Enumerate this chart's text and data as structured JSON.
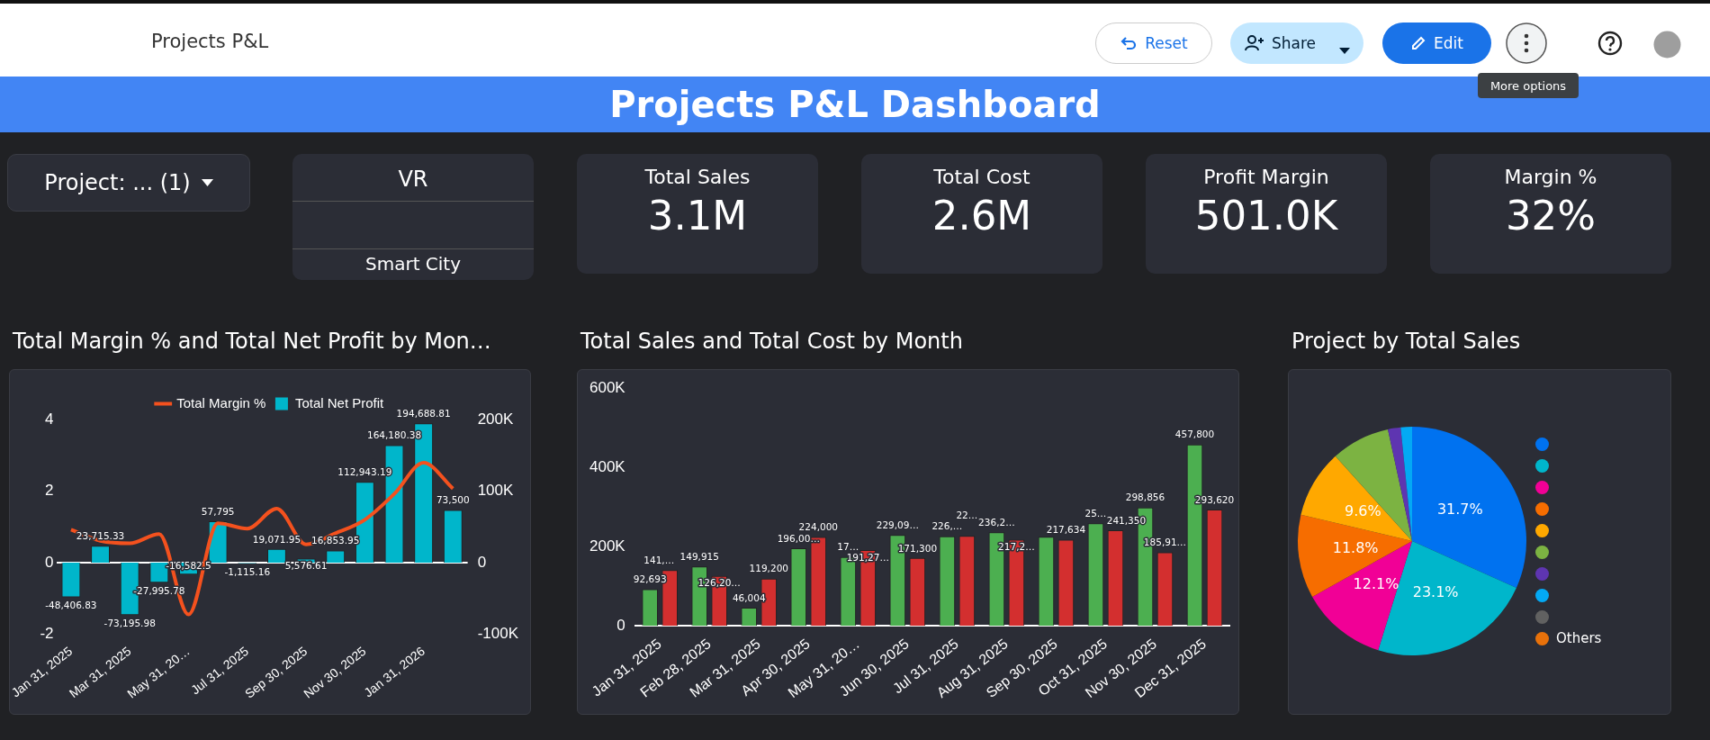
{
  "chart_data": [
    {
      "type": "other",
      "title": "Projects P&L Dashboard",
      "annotations": [
        "Projects P&L",
        "Reset",
        "Share",
        "Edit",
        "More options",
        "Project: ... (1)",
        "VR",
        "Smart City",
        "Total Sales",
        "3.1M",
        "Total Cost",
        "2.6M",
        "Profit Margin",
        "501.0K",
        "Margin %",
        "32%"
      ]
    },
    {
      "type": "bar",
      "title": "Total Margin % and Total Net Profit by Mon…",
      "categories": [
        "Jan 31, 2025",
        null,
        "Mar 31, 2025",
        null,
        "May 31, 20…",
        null,
        "Jul 31, 2025",
        null,
        "Sep 30, 2025",
        null,
        "Nov 30, 2025",
        null,
        "Jan 31, 2026",
        null
      ],
      "series": [
        {
          "name": "Total Margin %",
          "type": "line",
          "color": "#f4511e",
          "values": [
            0.92,
            0.61,
            0.54,
            0.8,
            -1.45,
            1.1,
            0.95,
            1.51,
            0.51,
            0.82,
            1.2,
            1.92,
            2.79,
            2.07
          ]
        },
        {
          "name": "Total Net Profit",
          "type": "bar",
          "axis": "y2",
          "color": "#00b6cb",
          "values": [
            -48406.83,
            23715.33,
            -73195.98,
            -27995.78,
            -16582.5,
            57795,
            -1115.16,
            19071.95,
            5576.61,
            16853.95,
            112943.19,
            164180.38,
            194688.81,
            73500
          ],
          "value_labels": [
            "-48,406.83",
            "23,715.33",
            "-73,195.98",
            "-27,995.78",
            "-16,582.5",
            "57,795",
            "-1,115.16",
            "19,071.95",
            "5,576.61",
            "16,853.95",
            "112,943.19",
            "164,180.38",
            "194,688.81",
            "73,500"
          ]
        }
      ],
      "ylim": [
        -2,
        4
      ],
      "yticks": [
        -2,
        0,
        2,
        4
      ],
      "y2lim": [
        -100000,
        200000
      ],
      "y2ticks": [
        {
          "value": -100000,
          "label": "-100K"
        },
        0,
        {
          "value": 100000,
          "label": "100K"
        },
        {
          "value": 200000,
          "label": "200K"
        }
      ],
      "legend": "top"
    },
    {
      "type": "bar",
      "title": "Total Sales and Total Cost by Month",
      "categories": [
        "Jan 31, 2025",
        "Feb 28, 2025",
        "Mar 31, 2025",
        "Apr 30, 2025",
        "May 31, 20…",
        "Jun 30, 2025",
        "Jul 31, 2025",
        "Aug 31, 2025",
        "Sep 30, 2025",
        "Oct 31, 2025",
        "Nov 30, 2025",
        "Dec 31, 2025"
      ],
      "series": [
        {
          "color": "#4caf50",
          "values": [
            92693,
            149915,
            46004,
            196000,
            174000,
            229090,
            226000,
            236200,
            225000,
            259000,
            298856,
            457800
          ],
          "value_labels": [
            "92,693",
            "149,915",
            "46,004",
            "196,00…",
            "17…",
            "229,09…",
            "226,…",
            "236,2…",
            null,
            "25…",
            "298,856",
            "457,800"
          ]
        },
        {
          "color": "#d32f2f",
          "values": [
            141000,
            126200,
            119200,
            224000,
            191270,
            171300,
            227000,
            217220,
            217634,
            241350,
            185913,
            293620
          ],
          "value_labels": [
            "141,…",
            "126,20…",
            "119,200",
            "224,000",
            "191,27…",
            "171,300",
            "22…",
            "217,2…",
            "217,634",
            "241,350",
            "185,91…",
            "293,620"
          ]
        }
      ],
      "ylim": [
        0,
        600000
      ],
      "yticks": [
        0,
        {
          "value": 200000,
          "label": "200K"
        },
        {
          "value": 400000,
          "label": "400K"
        },
        {
          "value": 600000,
          "label": "600K"
        }
      ]
    },
    {
      "type": "pie",
      "title": "Project by Total Sales",
      "categories": [
        null,
        null,
        null,
        null,
        null,
        null,
        null,
        null,
        null,
        "Others"
      ],
      "values": [
        31.7,
        23.1,
        12.1,
        11.8,
        9.6,
        8.3,
        1.8,
        1.6,
        0,
        0
      ],
      "colors": [
        "#0072f0",
        "#00b6cb",
        "#f10096",
        "#f66d00",
        "#ffa800",
        "#7cb342",
        "#5e35b1",
        "#03a9f4",
        "#616161",
        "#e8710a"
      ],
      "value_labels": [
        "31.7%",
        "23.1%",
        "12.1%",
        "11.8%",
        "9.6%",
        null,
        null,
        null,
        null,
        null
      ],
      "legend": "right"
    }
  ]
}
